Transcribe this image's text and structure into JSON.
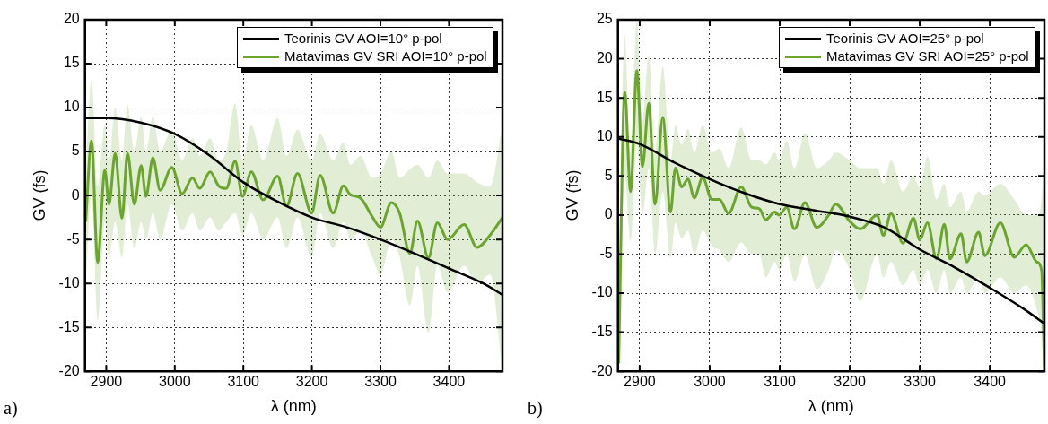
{
  "chart_data": [
    {
      "type": "line",
      "annotations": [
        "a)"
      ],
      "xlabel": "λ (nm)",
      "ylabel": "GV (fs)",
      "xlim": [
        2869,
        3478
      ],
      "ylim": [
        -20,
        20
      ],
      "xticks": [
        2900,
        3000,
        3100,
        3200,
        3300,
        3400
      ],
      "yticks": [
        -20,
        -15,
        -10,
        -5,
        0,
        5,
        10,
        15,
        20
      ],
      "grid": true,
      "legend": "top right",
      "series": [
        {
          "name": "Teorinis GV AOI=10° p-pol",
          "color": "#000000",
          "x": [
            2869,
            2900,
            2950,
            3000,
            3050,
            3100,
            3150,
            3200,
            3250,
            3300,
            3350,
            3400,
            3450,
            3478
          ],
          "values": [
            8.8,
            8.8,
            8.3,
            7.0,
            4.6,
            1.5,
            -0.7,
            -2.5,
            -3.6,
            -5.0,
            -6.6,
            -8.3,
            -10.0,
            -11.3
          ]
        },
        {
          "name": "Matavimas GV SRI AOI=10° p-pol",
          "color": "#6aa52c",
          "x": [
            2870,
            2878.5,
            2887.5,
            2898,
            2904,
            2913,
            2923,
            2931,
            2941,
            2951,
            2958,
            2968,
            2978.5,
            2995.7,
            3010.7,
            3025.8,
            3036.5,
            3051.5,
            3064,
            3075,
            3088,
            3098.7,
            3111.6,
            3128.8,
            3150,
            3163,
            3179,
            3199.6,
            3212,
            3231,
            3246,
            3256,
            3271,
            3288,
            3300,
            3316,
            3328,
            3343,
            3354,
            3370,
            3383,
            3398,
            3422,
            3441,
            3460,
            3478
          ],
          "values": [
            -3,
            6.2,
            -7.6,
            2.9,
            -1,
            4.8,
            -2.6,
            4.8,
            -1,
            3.4,
            -0.1,
            4.3,
            0.6,
            3.2,
            0.2,
            2.0,
            0.8,
            2.7,
            1.1,
            0.8,
            3.9,
            -0.1,
            2.7,
            -0.5,
            2.2,
            -1.2,
            2.5,
            -2.0,
            2.3,
            -2.0,
            1.1,
            0.1,
            -0.3,
            -2.4,
            -3.6,
            -0.8,
            -2.0,
            -6.6,
            -2.9,
            -7.1,
            -3.1,
            -5.0,
            -3.3,
            -5.9,
            -4.5,
            -2.5
          ],
          "upper": [
            3,
            13.2,
            1,
            8,
            4,
            10,
            4,
            10.3,
            5,
            9,
            5,
            9,
            5,
            7.5,
            4,
            6.5,
            4.5,
            6.5,
            4,
            5,
            10.5,
            4,
            8,
            4,
            8.8,
            4.5,
            7.5,
            4,
            7,
            4,
            6,
            3.5,
            4.5,
            2,
            2.5,
            5,
            2,
            3,
            3.5,
            2,
            4,
            2.5,
            2.5,
            1.5,
            1,
            8
          ],
          "lower": [
            -10,
            0,
            -14.3,
            -3,
            -7,
            -3,
            -7,
            -1,
            -6,
            -3,
            -5,
            -2,
            -5,
            -1,
            -4,
            -2,
            -4,
            -2.5,
            -4,
            -3,
            -2,
            -4.5,
            -2,
            -5,
            -2.5,
            -6,
            -2.5,
            -7,
            -2,
            -6,
            -3,
            -5,
            -4,
            -7,
            -9,
            -5,
            -7,
            -12.5,
            -8,
            -15.6,
            -8,
            -11,
            -8,
            -10,
            -9,
            -20
          ]
        }
      ]
    },
    {
      "type": "line",
      "annotations": [
        "b)"
      ],
      "xlabel": "λ (nm)",
      "ylabel": "GV (fs)",
      "xlim": [
        2869,
        3478
      ],
      "ylim": [
        -20,
        25
      ],
      "xticks": [
        2900,
        3000,
        3100,
        3200,
        3300,
        3400
      ],
      "yticks": [
        -20,
        -15,
        -10,
        -5,
        0,
        5,
        10,
        15,
        20,
        25
      ],
      "grid": true,
      "legend": "top right",
      "series": [
        {
          "name": "Teorinis GV AOI=25° p-pol",
          "color": "#000000",
          "x": [
            2869,
            2900,
            2950,
            3000,
            3050,
            3100,
            3150,
            3200,
            3250,
            3300,
            3350,
            3400,
            3450,
            3478
          ],
          "values": [
            9.8,
            9.1,
            6.7,
            4.6,
            2.8,
            1.4,
            0.6,
            -0.2,
            -1.6,
            -4.4,
            -6.7,
            -9.3,
            -12.1,
            -13.9
          ]
        },
        {
          "name": "Matavimas GV SRI AOI=25° p-pol",
          "color": "#6aa52c",
          "x": [
            2870,
            2878.7,
            2887,
            2896,
            2904,
            2913,
            2922,
            2933,
            2944,
            2951,
            2960,
            2969,
            2978,
            2990,
            3003,
            3014,
            3027,
            3045,
            3060,
            3071,
            3080,
            3093,
            3099,
            3110,
            3121,
            3136,
            3153,
            3170,
            3180,
            3200,
            3215,
            3239,
            3248,
            3259,
            3276,
            3291,
            3300,
            3311,
            3324,
            3335,
            3343,
            3359,
            3367,
            3384,
            3393,
            3415,
            3435,
            3452,
            3467,
            3474,
            3478
          ],
          "values": [
            -19,
            15.7,
            3.0,
            18.5,
            6.2,
            14.3,
            1.4,
            12.5,
            0.4,
            6.0,
            3.6,
            4.6,
            2.2,
            4.8,
            2.0,
            2.0,
            0.2,
            3.6,
            1.0,
            0.8,
            -0.6,
            0.4,
            0,
            1.0,
            -1.8,
            1.6,
            -1.6,
            0,
            1.4,
            -0.8,
            -1.8,
            0,
            -2.6,
            0.2,
            -3.6,
            -0.4,
            -3.2,
            -1.0,
            -5.6,
            -1.2,
            -5.6,
            -2.4,
            -6.0,
            -2.2,
            -5.2,
            -1.0,
            -5.4,
            -3.8,
            -6,
            -7.1,
            -20
          ],
          "upper": [
            -12,
            23,
            8,
            25,
            12,
            20.5,
            8,
            19,
            7,
            11.5,
            9,
            11,
            8,
            11.5,
            8,
            8.5,
            6,
            11.2,
            7,
            7,
            6.5,
            8,
            7,
            9.5,
            6,
            10.5,
            6,
            7,
            8,
            7,
            6,
            6,
            4,
            7,
            3,
            5,
            3.5,
            7.5,
            2,
            4,
            1,
            3,
            0.5,
            3,
            2.5,
            4,
            2,
            0,
            0,
            2,
            8
          ],
          "lower": [
            -20,
            5,
            -3.4,
            9,
            0,
            6,
            -5,
            3,
            -5.5,
            -1,
            -3,
            -2,
            -5,
            -2,
            -4,
            -4.5,
            -6,
            -3.5,
            -5,
            -5,
            -8,
            -6,
            -7,
            -5,
            -8.5,
            -5,
            -9.5,
            -7,
            -4.5,
            -7,
            -11,
            -5,
            -8,
            -6,
            -9,
            -7,
            -9,
            -7,
            -10,
            -7,
            -10,
            -8,
            -10,
            -8,
            -10,
            -8,
            -10,
            -9,
            -12,
            -15,
            -20
          ]
        }
      ]
    }
  ]
}
